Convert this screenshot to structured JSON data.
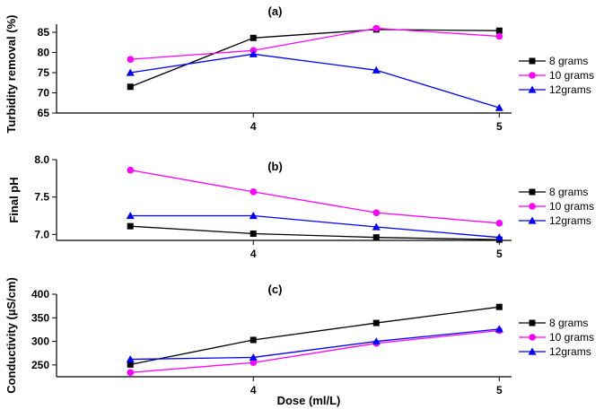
{
  "chart_data": [
    {
      "type": "line",
      "title": "(a)",
      "xlabel": "",
      "ylabel": "Turbidity removal (%)",
      "x": [
        3.5,
        4,
        4.5,
        5
      ],
      "xticks": [
        4,
        5
      ],
      "xtick_labels": [
        "4",
        "5"
      ],
      "xlim": [
        3.2,
        5.05
      ],
      "ylim": [
        65,
        87
      ],
      "yticks": [
        65,
        70,
        75,
        80,
        85
      ],
      "ytick_labels": [
        "65",
        "70",
        "75",
        "80",
        "85"
      ],
      "legend_position": "right",
      "grid": false,
      "series": [
        {
          "name": "8 grams",
          "color": "#000000",
          "marker": "square",
          "values": [
            71.5,
            83.6,
            85.7,
            85.4
          ]
        },
        {
          "name": "10 grams",
          "color": "#ff00ff",
          "marker": "circle",
          "values": [
            78.3,
            80.5,
            86.0,
            84.0
          ]
        },
        {
          "name": "12grams",
          "color": "#0000ff",
          "marker": "triangle",
          "values": [
            75.0,
            79.6,
            75.6,
            66.3
          ]
        }
      ]
    },
    {
      "type": "line",
      "title": "(b)",
      "xlabel": "",
      "ylabel": "Final pH",
      "x": [
        3.5,
        4,
        4.5,
        5
      ],
      "xticks": [
        4,
        5
      ],
      "xtick_labels": [
        "4",
        "5"
      ],
      "xlim": [
        3.2,
        5.05
      ],
      "ylim": [
        6.92,
        8.0
      ],
      "yticks": [
        7.0,
        7.5,
        8.0
      ],
      "ytick_labels": [
        "7.0",
        "7.5",
        "8.0"
      ],
      "legend_position": "right",
      "grid": false,
      "series": [
        {
          "name": "8 grams",
          "color": "#000000",
          "marker": "square",
          "values": [
            7.11,
            7.01,
            6.96,
            6.93
          ]
        },
        {
          "name": "10 grams",
          "color": "#ff00ff",
          "marker": "circle",
          "values": [
            7.86,
            7.57,
            7.29,
            7.15
          ]
        },
        {
          "name": "12grams",
          "color": "#0000ff",
          "marker": "triangle",
          "values": [
            7.25,
            7.25,
            7.1,
            6.96
          ]
        }
      ]
    },
    {
      "type": "line",
      "title": "(c)",
      "xlabel": "Dose (ml/L)",
      "ylabel": "Conductivity (µS/cm)",
      "x": [
        3.5,
        4,
        4.5,
        5
      ],
      "xticks": [
        4,
        5
      ],
      "xtick_labels": [
        "4",
        "5"
      ],
      "xlim": [
        3.2,
        5.05
      ],
      "ylim": [
        225,
        400
      ],
      "yticks": [
        250,
        300,
        350,
        400
      ],
      "ytick_labels": [
        "250",
        "300",
        "350",
        "400"
      ],
      "legend_position": "right",
      "grid": false,
      "series": [
        {
          "name": "8 grams",
          "color": "#000000",
          "marker": "square",
          "values": [
            251,
            303,
            339,
            373
          ]
        },
        {
          "name": "10 grams",
          "color": "#ff00ff",
          "marker": "circle",
          "values": [
            234,
            255,
            296,
            323
          ]
        },
        {
          "name": "12grams",
          "color": "#0000ff",
          "marker": "triangle",
          "values": [
            262,
            266,
            300,
            326
          ]
        }
      ]
    }
  ]
}
